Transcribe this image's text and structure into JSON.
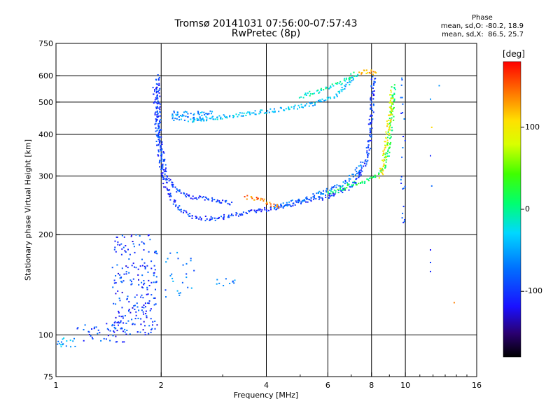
{
  "header": {
    "title": "Tromsø 20141031 07:56:00-07:57:43",
    "subtitle": "RwPretec (8p)",
    "phase_title": "Phase",
    "phase_line1": "mean, sd,O: -80.2, 18.9",
    "phase_line2": "mean, sd,X:  86.5, 25.7"
  },
  "axes": {
    "xlabel": "Frequency [MHz]",
    "ylabel": "Stationary phase Virtual Height [km]"
  },
  "colorbar": {
    "unit": "[deg]",
    "min": -180,
    "max": 180,
    "ticks": [
      {
        "value": 100,
        "label": "100"
      },
      {
        "value": 0,
        "label": "0"
      },
      {
        "value": -100,
        "label": "-100"
      }
    ]
  },
  "chart_data": {
    "type": "scatter",
    "x_scale": "log",
    "y_scale": "log",
    "xlim": [
      1,
      16
    ],
    "ylim": [
      75,
      750
    ],
    "x_ticks": [
      {
        "value": 1,
        "label": "1"
      },
      {
        "value": 2,
        "label": "2"
      },
      {
        "value": 4,
        "label": "4"
      },
      {
        "value": 6,
        "label": "6"
      },
      {
        "value": 8,
        "label": "8"
      },
      {
        "value": 10,
        "label": "10"
      },
      {
        "value": 16,
        "label": "16"
      }
    ],
    "x_grid": [
      2,
      4,
      6,
      8,
      10
    ],
    "y_ticks": [
      {
        "value": 75,
        "label": "75"
      },
      {
        "value": 100,
        "label": "100"
      },
      {
        "value": 200,
        "label": "200"
      },
      {
        "value": 300,
        "label": "300"
      },
      {
        "value": 400,
        "label": "400"
      },
      {
        "value": 500,
        "label": "500"
      },
      {
        "value": 600,
        "label": "600"
      },
      {
        "value": 750,
        "label": "750"
      }
    ],
    "y_grid": [
      100,
      200,
      300,
      400,
      500,
      600
    ],
    "grid": true,
    "point_color_variable": "phase (deg)",
    "trace_series": [
      {
        "name": "",
        "phase": -100,
        "points": [
          [
            1.95,
            600
          ],
          [
            1.96,
            500
          ],
          [
            1.98,
            420
          ],
          [
            2.0,
            360
          ],
          [
            2.05,
            310
          ],
          [
            2.15,
            280
          ],
          [
            2.3,
            265
          ],
          [
            2.5,
            258
          ],
          [
            2.8,
            255
          ],
          [
            3.2,
            248
          ]
        ]
      },
      {
        "name": "",
        "phase": -100,
        "points": [
          [
            1.92,
            560
          ],
          [
            1.94,
            450
          ],
          [
            1.96,
            380
          ],
          [
            2.0,
            320
          ],
          [
            2.05,
            285
          ],
          [
            2.15,
            255
          ],
          [
            2.3,
            235
          ],
          [
            2.5,
            225
          ],
          [
            2.8,
            223
          ],
          [
            3.2,
            228
          ],
          [
            3.6,
            235
          ],
          [
            4.0,
            238
          ],
          [
            4.5,
            244
          ],
          [
            5.0,
            250
          ],
          [
            5.5,
            255
          ],
          [
            6.0,
            260
          ],
          [
            6.5,
            268
          ],
          [
            7.0,
            280
          ],
          [
            7.4,
            300
          ],
          [
            7.7,
            330
          ],
          [
            7.9,
            380
          ],
          [
            8.0,
            450
          ],
          [
            8.05,
            530
          ],
          [
            8.1,
            600
          ]
        ]
      },
      {
        "name": "",
        "phase": -75,
        "points": [
          [
            4.2,
            242
          ],
          [
            4.8,
            250
          ],
          [
            5.5,
            262
          ],
          [
            6.2,
            275
          ],
          [
            6.8,
            290
          ],
          [
            7.2,
            305
          ],
          [
            7.5,
            330
          ]
        ]
      },
      {
        "name": "",
        "phase": 15,
        "points": [
          [
            6.0,
            265
          ],
          [
            6.6,
            275
          ],
          [
            7.2,
            285
          ],
          [
            7.8,
            290
          ],
          [
            8.3,
            300
          ],
          [
            8.7,
            320
          ],
          [
            8.95,
            360
          ],
          [
            9.1,
            420
          ],
          [
            9.2,
            500
          ],
          [
            9.25,
            560
          ]
        ]
      },
      {
        "name": "",
        "phase": 95,
        "points": [
          [
            8.5,
            300
          ],
          [
            8.7,
            340
          ],
          [
            8.85,
            390
          ],
          [
            9.0,
            450
          ],
          [
            9.1,
            500
          ],
          [
            9.15,
            540
          ]
        ]
      },
      {
        "name": "",
        "phase": -40,
        "points": [
          [
            2.4,
            440
          ],
          [
            2.8,
            448
          ],
          [
            3.2,
            455
          ],
          [
            3.6,
            462
          ],
          [
            4.0,
            470
          ],
          [
            4.5,
            478
          ],
          [
            5.0,
            485
          ],
          [
            5.5,
            495
          ],
          [
            6.0,
            510
          ],
          [
            6.4,
            530
          ],
          [
            6.8,
            560
          ],
          [
            7.0,
            585
          ],
          [
            7.3,
            605
          ]
        ]
      },
      {
        "name": "",
        "phase": -10,
        "points": [
          [
            5.0,
            520
          ],
          [
            5.5,
            535
          ],
          [
            6.0,
            550
          ],
          [
            6.5,
            570
          ],
          [
            6.9,
            590
          ],
          [
            7.2,
            610
          ]
        ]
      },
      {
        "name": "",
        "phase": 140,
        "points": [
          [
            3.5,
            260
          ],
          [
            3.8,
            255
          ],
          [
            4.1,
            248
          ],
          [
            4.4,
            242
          ]
        ]
      },
      {
        "name": "",
        "phase": 120,
        "points": [
          [
            7.4,
            610
          ],
          [
            7.7,
            620
          ],
          [
            8.0,
            615
          ],
          [
            8.4,
            610
          ]
        ]
      }
    ],
    "cloud_series": [
      {
        "name": "",
        "x_range": [
          1.45,
          1.95
        ],
        "y_range": [
          100,
          200
        ],
        "phase": -100,
        "count": 220
      },
      {
        "name": "",
        "x_range": [
          1.15,
          1.6
        ],
        "y_range": [
          95,
          110
        ],
        "phase": -95,
        "count": 45
      },
      {
        "name": "",
        "x_range": [
          1.0,
          1.15
        ],
        "y_range": [
          92,
          100
        ],
        "phase": -55,
        "count": 18
      },
      {
        "name": "",
        "x_range": [
          2.15,
          2.8
        ],
        "y_range": [
          440,
          470
        ],
        "phase": -60,
        "count": 60
      },
      {
        "name": "",
        "x_range": [
          2.05,
          2.5
        ],
        "y_range": [
          130,
          180
        ],
        "phase": -70,
        "count": 25
      },
      {
        "name": "",
        "x_range": [
          2.8,
          3.3
        ],
        "y_range": [
          140,
          148
        ],
        "phase": -60,
        "count": 10
      },
      {
        "name": "",
        "x_range": [
          9.7,
          10.0
        ],
        "y_range": [
          200,
          600
        ],
        "phase": -90,
        "count": 25
      }
    ],
    "isolated_points": [
      {
        "x": 11.8,
        "y": 510,
        "phase": -60
      },
      {
        "x": 11.8,
        "y": 345,
        "phase": -110
      },
      {
        "x": 11.9,
        "y": 280,
        "phase": -80
      },
      {
        "x": 11.8,
        "y": 180,
        "phase": -120
      },
      {
        "x": 11.8,
        "y": 165,
        "phase": -100
      },
      {
        "x": 13.8,
        "y": 125,
        "phase": 140
      },
      {
        "x": 12.5,
        "y": 560,
        "phase": -60
      },
      {
        "x": 11.9,
        "y": 420,
        "phase": 110
      },
      {
        "x": 11.8,
        "y": 155,
        "phase": -110
      }
    ]
  }
}
